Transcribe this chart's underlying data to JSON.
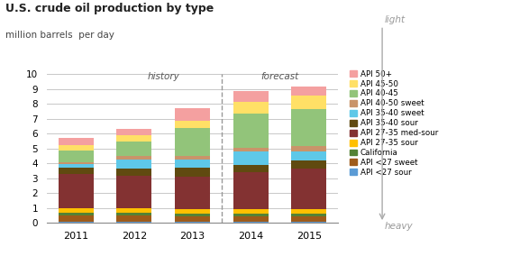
{
  "title": "U.S. crude oil production by type",
  "subtitle": "million barrels  per day",
  "years": [
    2011,
    2012,
    2013,
    2014,
    2015
  ],
  "categories": [
    "API <27 sour",
    "API <27 sweet",
    "California",
    "API 27-35 sour",
    "API 27-35 med-sour",
    "API 35-40 sour",
    "API 35-40 sweet",
    "API 40-50 sweet",
    "API 40-45",
    "API 45-50",
    "API 50+"
  ],
  "colors": [
    "#5B9BD5",
    "#9E5B1A",
    "#548235",
    "#FFC000",
    "#833232",
    "#604A10",
    "#5EC8E8",
    "#C9946A",
    "#92C47A",
    "#FFE066",
    "#F4A0A0"
  ],
  "values": {
    "API <27 sour": [
      0.07,
      0.07,
      0.07,
      0.07,
      0.07
    ],
    "API <27 sweet": [
      0.43,
      0.4,
      0.38,
      0.38,
      0.38
    ],
    "California": [
      0.18,
      0.18,
      0.18,
      0.18,
      0.18
    ],
    "API 27-35 sour": [
      0.32,
      0.3,
      0.3,
      0.3,
      0.3
    ],
    "API 27-35 med-sour": [
      2.3,
      2.2,
      2.2,
      2.45,
      2.7
    ],
    "API 35-40 sour": [
      0.4,
      0.5,
      0.55,
      0.5,
      0.55
    ],
    "API 35-40 sweet": [
      0.25,
      0.6,
      0.6,
      0.9,
      0.65
    ],
    "API 40-50 sweet": [
      0.15,
      0.22,
      0.22,
      0.28,
      0.35
    ],
    "API 40-45": [
      0.75,
      1.0,
      1.85,
      2.3,
      2.5
    ],
    "API 45-50": [
      0.4,
      0.4,
      0.5,
      0.75,
      0.9
    ],
    "API 50+": [
      0.45,
      0.43,
      0.85,
      0.75,
      0.62
    ]
  },
  "ylim": [
    0,
    10
  ],
  "yticks": [
    0,
    1,
    2,
    3,
    4,
    5,
    6,
    7,
    8,
    9,
    10
  ],
  "history_label": "history",
  "forecast_label": "forecast",
  "light_label": "light",
  "heavy_label": "heavy",
  "background_color": "#FFFFFF",
  "grid_color": "#C8C8C8"
}
